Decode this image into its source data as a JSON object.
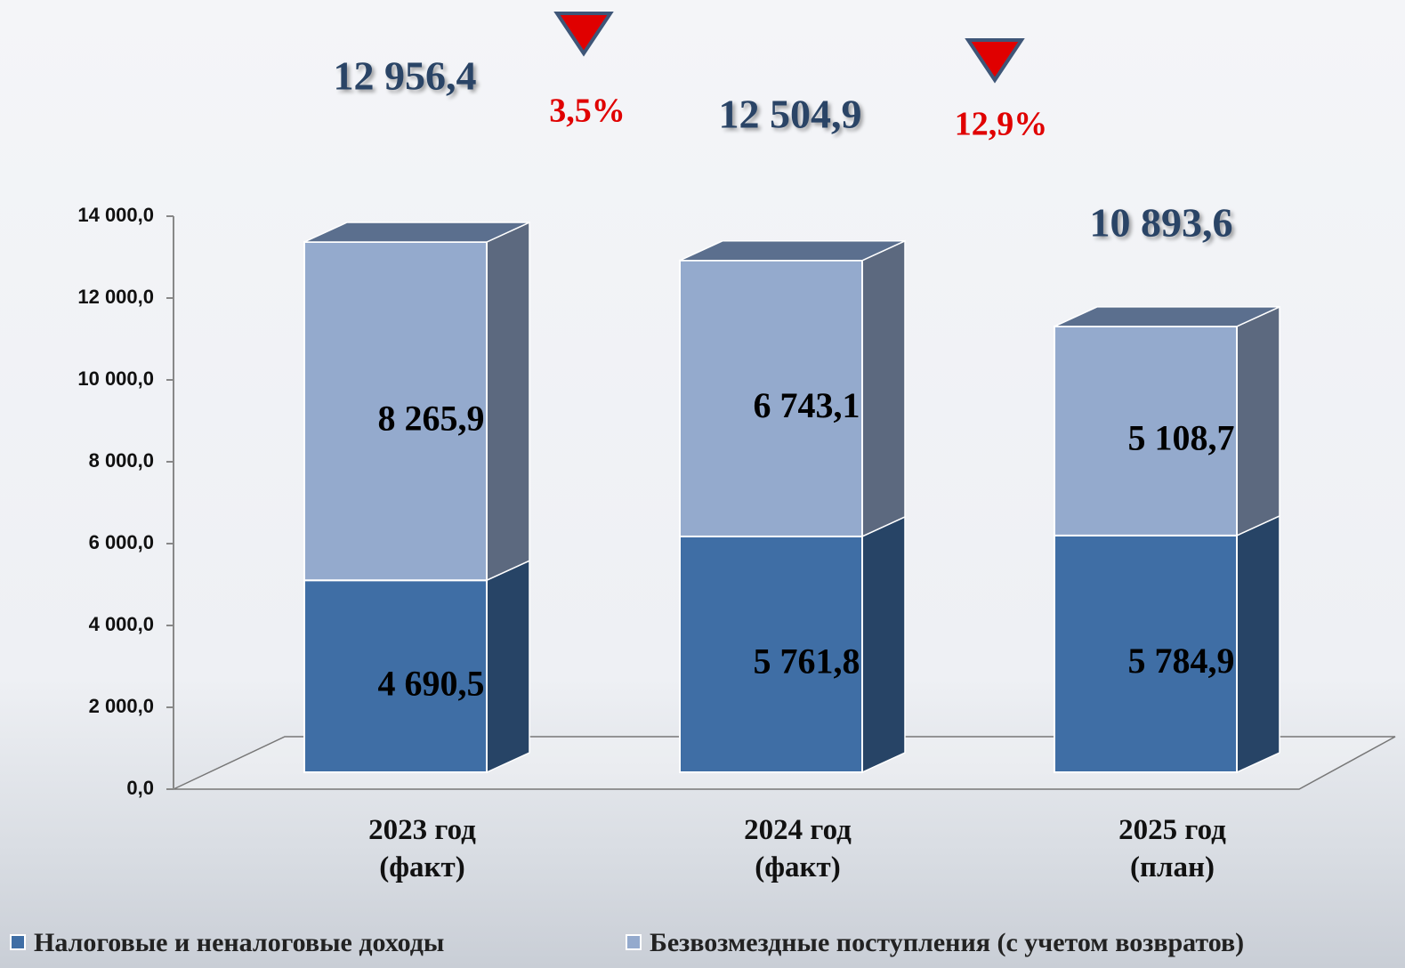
{
  "chart_data": {
    "type": "bar",
    "stacked": true,
    "categories": [
      "2023 год\n(факт)",
      "2024 год\n(факт)",
      "2025 год\n(план)"
    ],
    "series": [
      {
        "name": "Налоговые и неналоговые доходы",
        "color": "#3f6ea5",
        "values": [
          4690.5,
          5761.8,
          5784.9
        ],
        "value_labels": [
          "4 690,5",
          "5 761,8",
          "5 784,9"
        ]
      },
      {
        "name": "Безвозмездные поступления (с учетом возвратов)",
        "color": "#94aacd",
        "values": [
          8265.9,
          6743.1,
          5108.7
        ],
        "value_labels": [
          "8 265,9",
          "6 743,1",
          "5 108,7"
        ]
      }
    ],
    "totals": {
      "values": [
        12956.4,
        12504.9,
        10893.6
      ],
      "value_labels": [
        "12 956,4",
        "12 504,9",
        "10 893,6"
      ],
      "color": "#2a4466"
    },
    "changes": {
      "values": [
        3.5,
        12.9
      ],
      "value_labels": [
        "3,5%",
        "12,9%"
      ],
      "direction": "down",
      "color": "#e00000"
    },
    "ylim": [
      0,
      14000
    ],
    "yticks": [
      {
        "value": 0,
        "label": "0,0"
      },
      {
        "value": 2000,
        "label": "2 000,0"
      },
      {
        "value": 4000,
        "label": "4 000,0"
      },
      {
        "value": 6000,
        "label": "6 000,0"
      },
      {
        "value": 8000,
        "label": "8 000,0"
      },
      {
        "value": 10000,
        "label": "10 000,0"
      },
      {
        "value": 12000,
        "label": "12 000,0"
      },
      {
        "value": 14000,
        "label": "14 000,0"
      }
    ],
    "legend": "bottom"
  }
}
